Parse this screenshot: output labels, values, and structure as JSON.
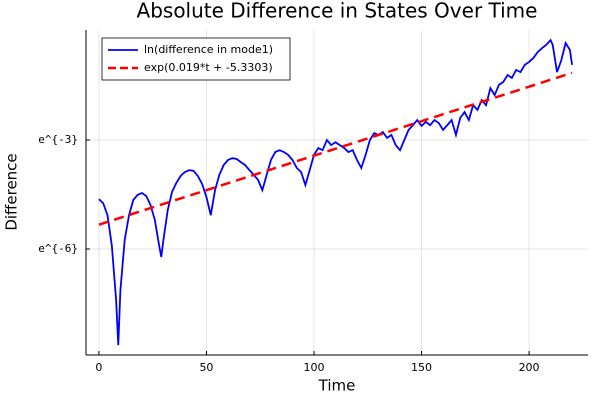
{
  "chart_data": {
    "type": "line",
    "title": "Absolute Difference in States Over Time",
    "xlabel": "Time",
    "ylabel": "Difference",
    "xlim": [
      -6.0,
      227.4
    ],
    "ylim": [
      -8.92,
      0.03
    ],
    "xticks": [
      0,
      50,
      100,
      150,
      200
    ],
    "yticks": [
      {
        "value": -6,
        "label": "e^{-6}"
      },
      {
        "value": -3,
        "label": "e^{-3}"
      }
    ],
    "grid": true,
    "legend": "top-left",
    "series": [
      {
        "name": "ln(difference in mode1)",
        "color": "#0000ff",
        "dash": false,
        "x": [
          0,
          2,
          4,
          6,
          8,
          9,
          10,
          12,
          14,
          16,
          18,
          20,
          22,
          24,
          26,
          28,
          29,
          30,
          32,
          34,
          36,
          38,
          40,
          42,
          44,
          46,
          48,
          50,
          52,
          54,
          56,
          58,
          60,
          62,
          64,
          66,
          68,
          70,
          72,
          74,
          76,
          78,
          80,
          82,
          84,
          86,
          88,
          90,
          92,
          94,
          96,
          98,
          100,
          102,
          104,
          106,
          108,
          110,
          112,
          114,
          116,
          118,
          120,
          122,
          124,
          126,
          128,
          130,
          132,
          134,
          136,
          138,
          140,
          142,
          144,
          146,
          148,
          150,
          152,
          154,
          156,
          158,
          160,
          162,
          164,
          166,
          168,
          170,
          172,
          174,
          176,
          178,
          180,
          182,
          184,
          186,
          188,
          190,
          192,
          194,
          196,
          198,
          200,
          202,
          204,
          206,
          208,
          210,
          211,
          213,
          215,
          217,
          219,
          220
        ],
        "values": [
          -4.63,
          -4.74,
          -5.07,
          -5.9,
          -7.4,
          -8.65,
          -7.13,
          -5.75,
          -5.07,
          -4.65,
          -4.51,
          -4.46,
          -4.54,
          -4.79,
          -5.2,
          -5.9,
          -6.22,
          -5.75,
          -4.93,
          -4.43,
          -4.18,
          -3.99,
          -3.88,
          -3.83,
          -3.85,
          -3.99,
          -4.21,
          -4.57,
          -5.07,
          -4.38,
          -3.96,
          -3.69,
          -3.55,
          -3.5,
          -3.52,
          -3.61,
          -3.69,
          -3.83,
          -3.96,
          -4.1,
          -4.38,
          -3.96,
          -3.55,
          -3.33,
          -3.28,
          -3.33,
          -3.41,
          -3.55,
          -3.77,
          -3.88,
          -4.24,
          -3.83,
          -3.41,
          -3.22,
          -3.28,
          -3.0,
          -3.14,
          -3.06,
          -3.14,
          -3.22,
          -3.33,
          -3.28,
          -3.55,
          -3.77,
          -3.41,
          -3.0,
          -2.81,
          -2.86,
          -2.78,
          -2.94,
          -2.86,
          -3.14,
          -3.28,
          -3.0,
          -2.72,
          -2.59,
          -2.45,
          -2.61,
          -2.5,
          -2.59,
          -2.45,
          -2.53,
          -2.72,
          -2.59,
          -2.45,
          -2.86,
          -2.39,
          -2.23,
          -2.45,
          -2.04,
          -2.17,
          -1.9,
          -2.04,
          -1.57,
          -1.76,
          -1.48,
          -1.4,
          -1.21,
          -1.29,
          -1.07,
          -1.13,
          -0.93,
          -0.85,
          -0.74,
          -0.58,
          -0.47,
          -0.38,
          -0.25,
          -0.38,
          -1.13,
          -0.8,
          -0.33,
          -0.52,
          -0.93
        ]
      },
      {
        "name": "exp(0.019*t + -5.3303)",
        "color": "#ff0000",
        "dash": true,
        "x": [
          0,
          220
        ],
        "values": [
          -5.3303,
          -1.1503
        ]
      }
    ]
  }
}
